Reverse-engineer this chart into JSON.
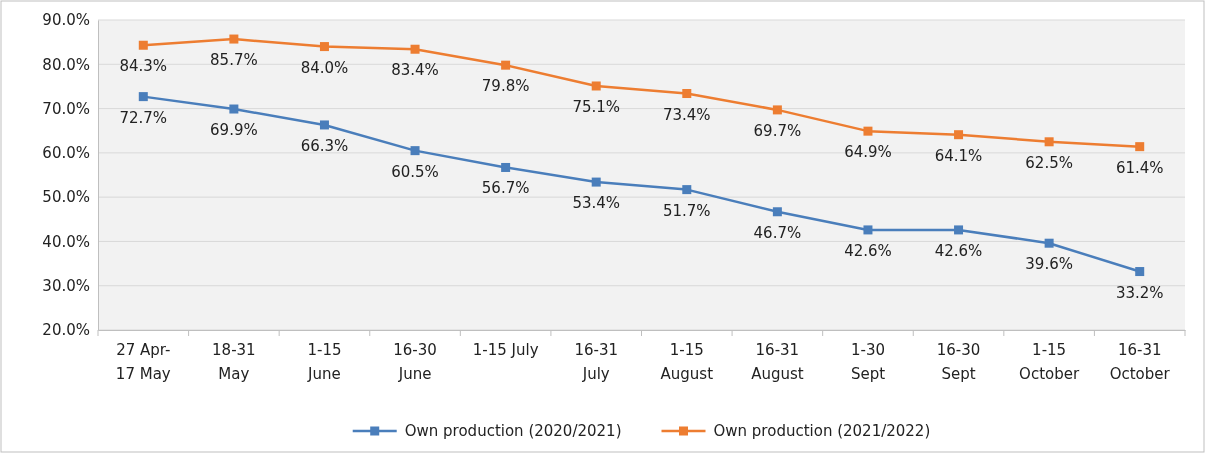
{
  "chart_data": {
    "type": "line",
    "categories": [
      "27 Apr-\n17 May",
      "18-31\nMay",
      "1-15\nJune",
      "16-30\nJune",
      "1-15 July",
      "16-31\nJuly",
      "1-15\nAugust",
      "16-31\nAugust",
      "1-30\nSept",
      "16-30\nSept",
      "1-15\nOctober",
      "16-31\nOctober"
    ],
    "series": [
      {
        "name": "Own production (2020/2021)",
        "color": "#4a7ebb",
        "values": [
          72.7,
          69.9,
          66.3,
          60.5,
          56.7,
          53.4,
          51.7,
          46.7,
          42.6,
          42.6,
          39.6,
          33.2
        ],
        "value_labels": [
          "72.7%",
          "69.9%",
          "66.3%",
          "60.5%",
          "56.7%",
          "53.4%",
          "51.7%",
          "46.7%",
          "42.6%",
          "42.6%",
          "39.6%",
          "33.2%"
        ]
      },
      {
        "name": "Own production (2021/2022)",
        "color": "#ed7d31",
        "values": [
          84.3,
          85.7,
          84.0,
          83.4,
          79.8,
          75.1,
          73.4,
          69.7,
          64.9,
          64.1,
          62.5,
          61.4
        ],
        "value_labels": [
          "84.3%",
          "85.7%",
          "84.0%",
          "83.4%",
          "79.8%",
          "75.1%",
          "73.4%",
          "69.7%",
          "64.9%",
          "64.1%",
          "62.5%",
          "61.4%"
        ]
      }
    ],
    "ylim": [
      20,
      90
    ],
    "yticks": [
      {
        "value": 20,
        "label": "20.0%"
      },
      {
        "value": 30,
        "label": "30.0%"
      },
      {
        "value": 40,
        "label": "40.0%"
      },
      {
        "value": 50,
        "label": "50.0%"
      },
      {
        "value": 60,
        "label": "60.0%"
      },
      {
        "value": 70,
        "label": "70.0%"
      },
      {
        "value": 80,
        "label": "80.0%"
      },
      {
        "value": 90,
        "label": "90.0%"
      }
    ],
    "grid": "y",
    "legend": "bottom",
    "marker": "square",
    "line_style": "solid"
  }
}
